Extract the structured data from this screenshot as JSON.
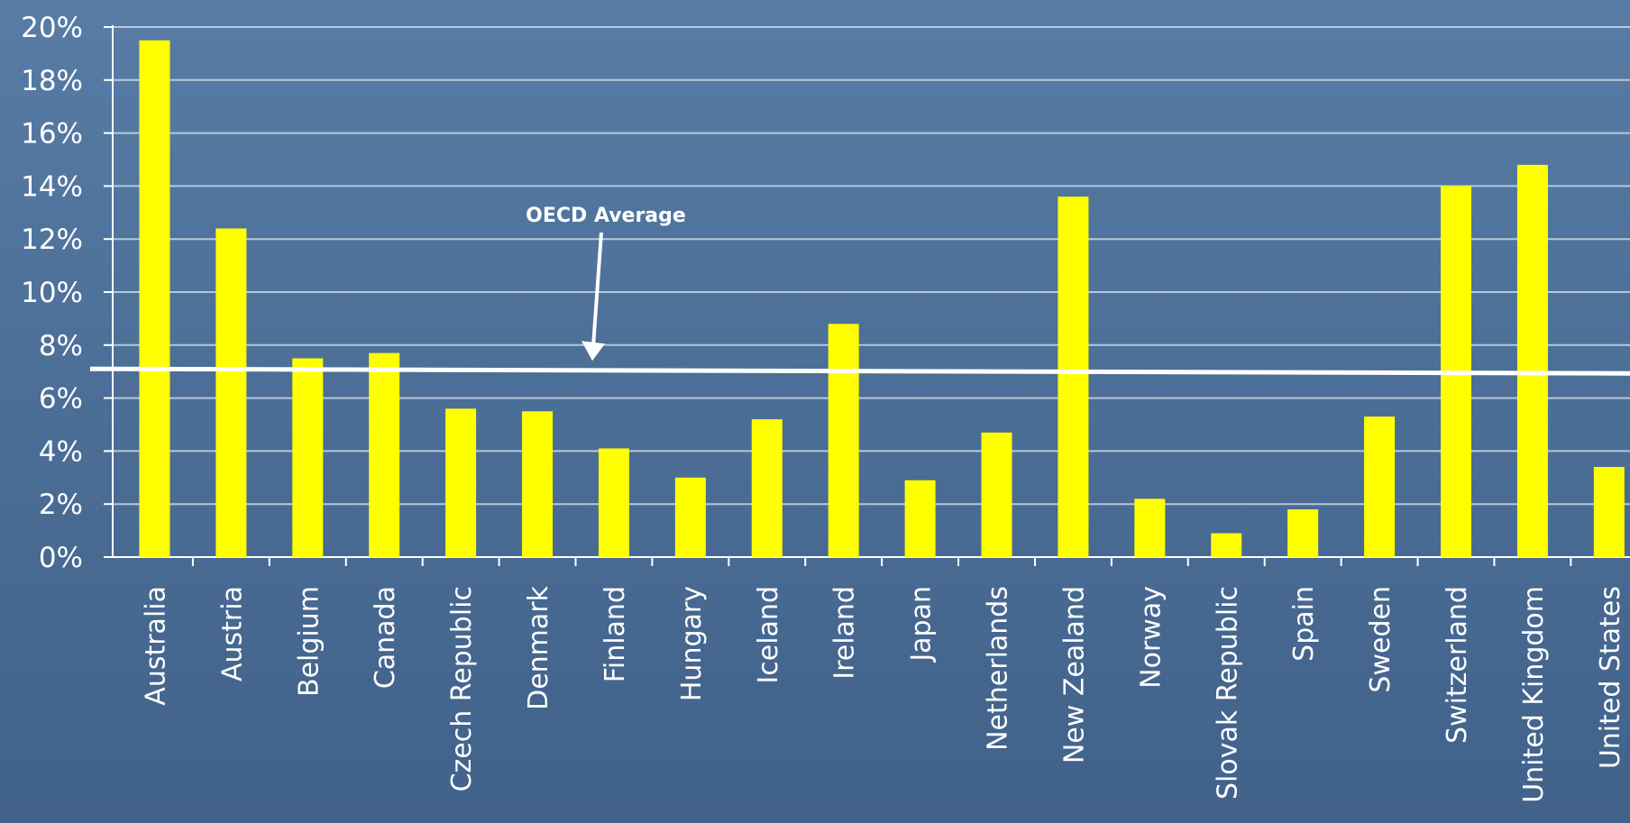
{
  "chart_data": {
    "type": "bar",
    "categories": [
      "Australia",
      "Austria",
      "Belgium",
      "Canada",
      "Czech Republic",
      "Denmark",
      "Finland",
      "Hungary",
      "Iceland",
      "Ireland",
      "Japan",
      "Netherlands",
      "New Zealand",
      "Norway",
      "Slovak Republic",
      "Spain",
      "Sweden",
      "Switzerland",
      "United Kingdom",
      "United States"
    ],
    "values": [
      19.5,
      12.4,
      7.5,
      7.7,
      5.6,
      5.5,
      4.1,
      3.0,
      5.2,
      8.8,
      2.9,
      4.7,
      13.6,
      2.2,
      0.9,
      1.8,
      5.3,
      14.0,
      14.8,
      3.4
    ],
    "y_ticks": [
      "0%",
      "2%",
      "4%",
      "6%",
      "8%",
      "10%",
      "12%",
      "14%",
      "16%",
      "18%",
      "20%"
    ],
    "ylim": [
      0,
      20
    ],
    "grid": true,
    "bar_color": "#ffff00",
    "reference_line": {
      "label": "OECD Average",
      "value": 7.0,
      "color": "#ffffff"
    }
  }
}
